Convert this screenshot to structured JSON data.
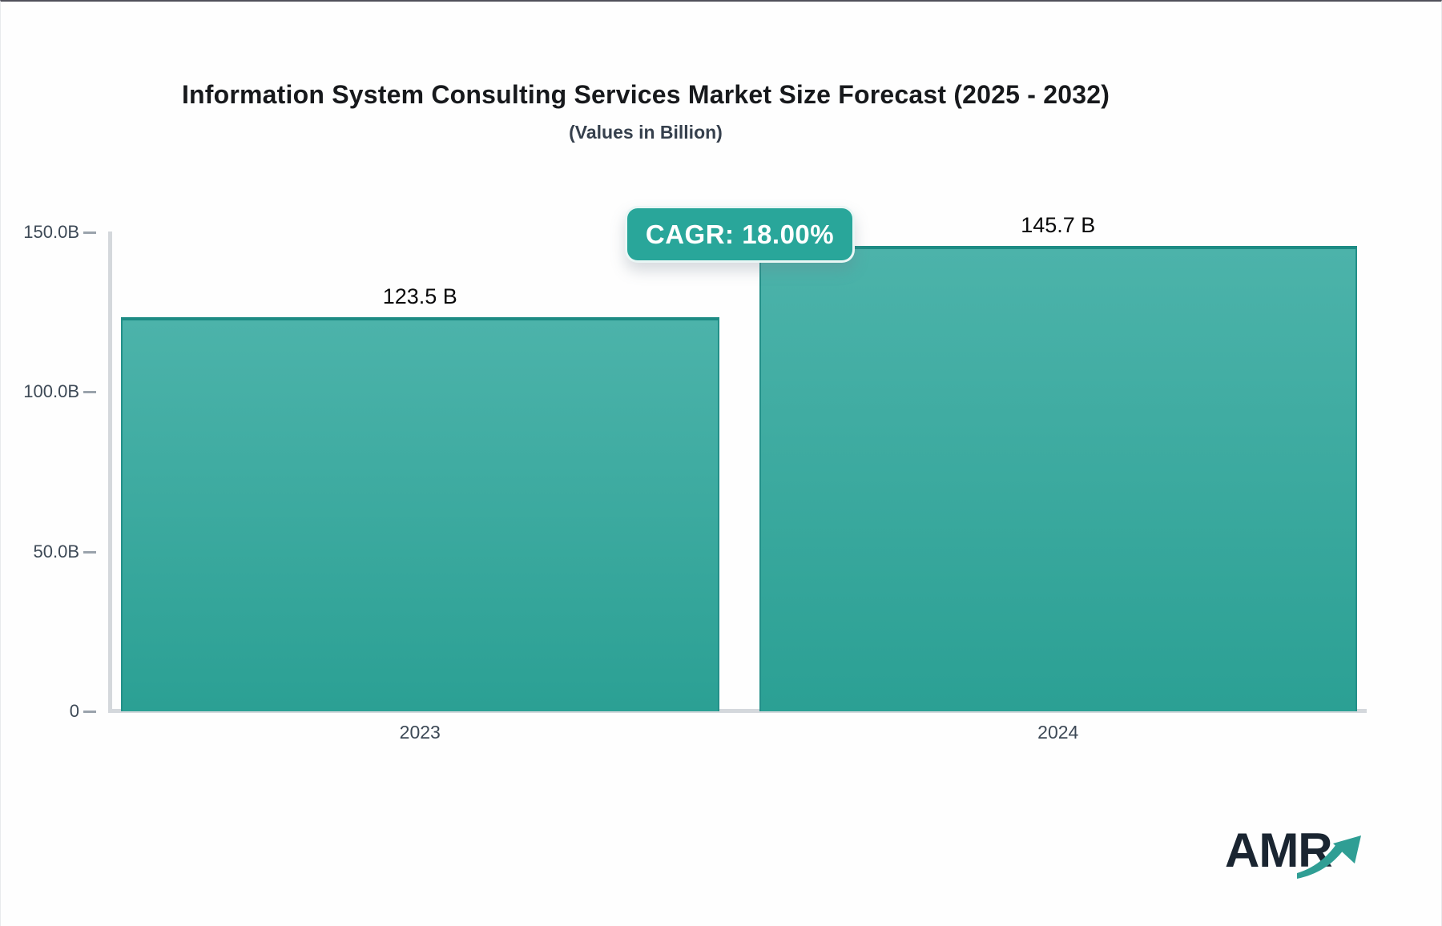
{
  "header": {
    "title": "Information System Consulting Services Market Size Forecast (2025 - 2032)",
    "subtitle": "(Values in Billion)"
  },
  "badge": {
    "label": "CAGR: 18.00%"
  },
  "logo": {
    "text": "AMR",
    "icon": "trend-up-arrow"
  },
  "colors": {
    "title": "#17191c",
    "tick_label": "#3d4956",
    "axis_line": "#d4d8dc",
    "bar_top": "#4cb3aa",
    "bar_bottom": "#2ba094",
    "bar_border": "#239089",
    "bar_border_top": "#1d8b84",
    "badge_bg": "#29a69a",
    "logo_text": "#1a2531",
    "logo_arrow": "#2f9e94"
  },
  "chart_data": {
    "type": "bar",
    "title": "Information System Consulting Services Market Size Forecast (2025 - 2032)",
    "subtitle": "(Values in Billion)",
    "categories": [
      "2023",
      "2024"
    ],
    "values": [
      123.5,
      145.7
    ],
    "value_labels": [
      "123.5 B",
      "145.7 B"
    ],
    "unit": "Billion",
    "xlabel": "",
    "ylabel": "",
    "ylim": [
      0,
      150
    ],
    "ytick_values": [
      150,
      100,
      50,
      0
    ],
    "ytick_labels": [
      "150.0B",
      "100.0B",
      "50.0B",
      "0"
    ],
    "grid": false,
    "legend": false,
    "annotations": [
      "CAGR: 18.00%"
    ]
  }
}
